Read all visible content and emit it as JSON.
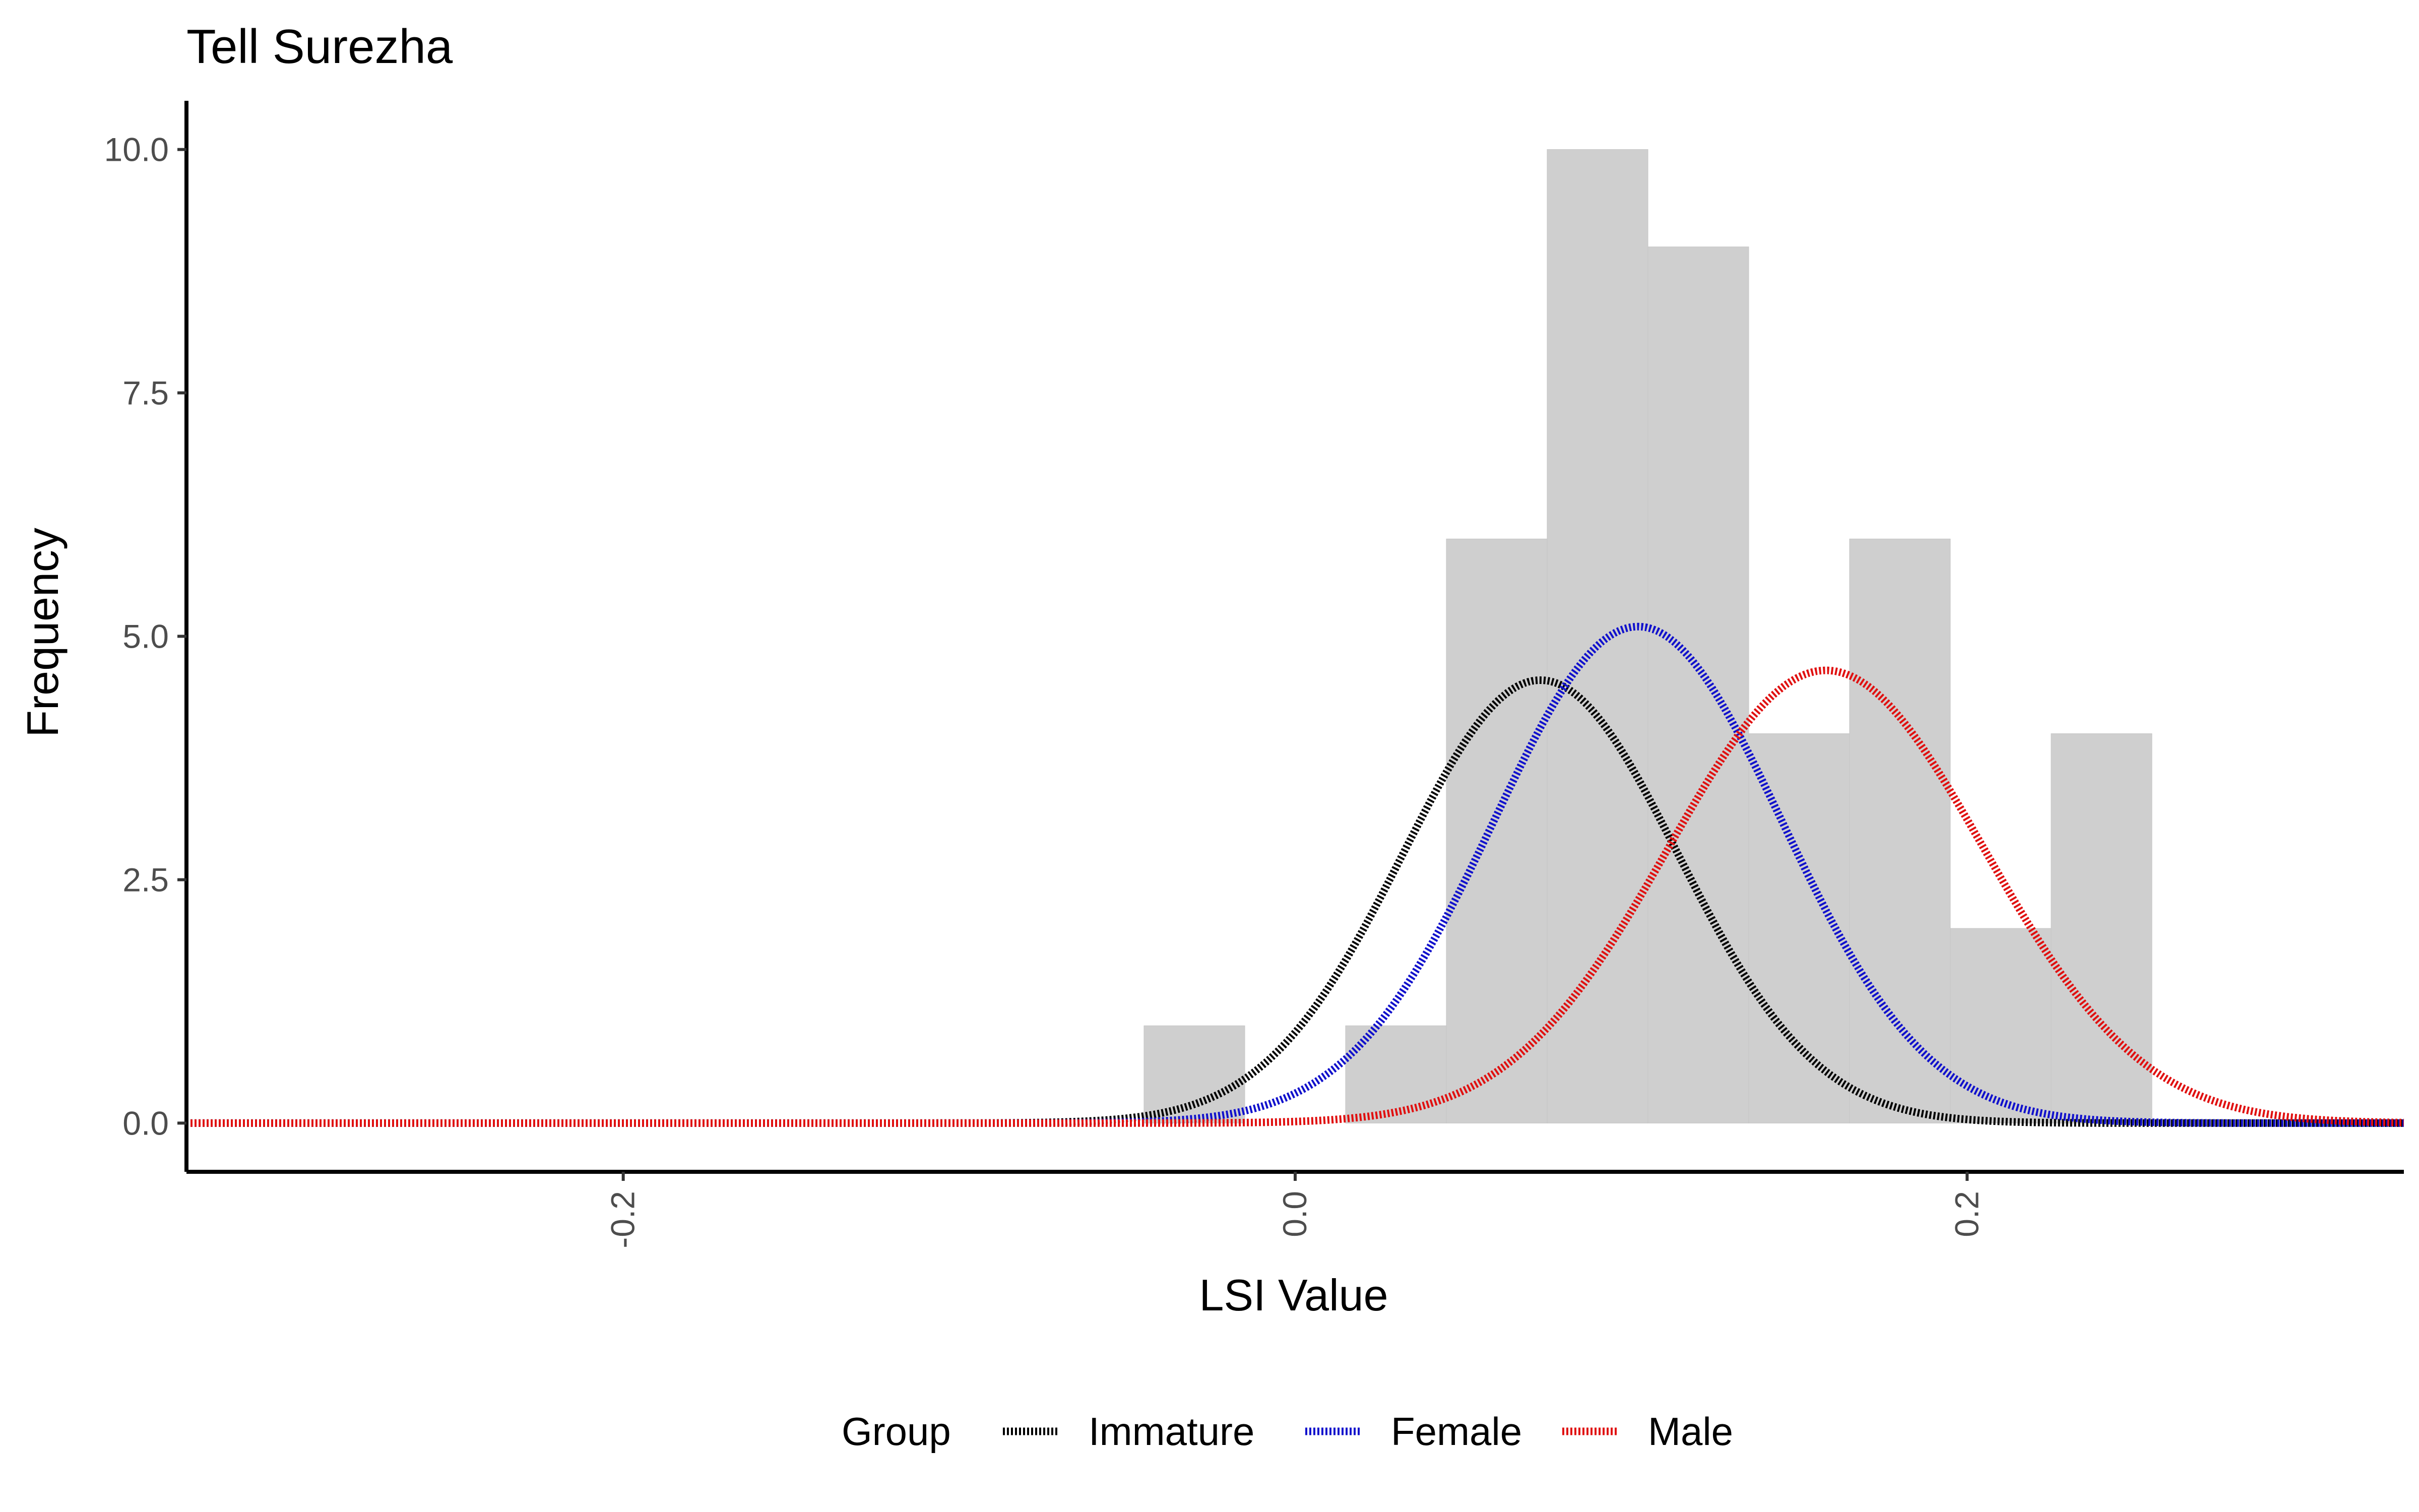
{
  "chart_data": {
    "type": "bar",
    "title": "Tell Surezha",
    "xlabel": "LSI Value",
    "ylabel": "Frequency",
    "xlim": [
      -0.33,
      0.33
    ],
    "ylim": [
      -0.5,
      10.5
    ],
    "x_ticks": [
      -0.2,
      0.0,
      0.2
    ],
    "x_tick_labels": [
      "-0.2",
      "0.0",
      "0.2"
    ],
    "y_ticks": [
      0,
      2.5,
      5,
      7.5,
      10
    ],
    "y_tick_labels": [
      "0.0",
      "2.5",
      "5.0",
      "7.5",
      "10.0"
    ],
    "grid": false,
    "legend_position": "bottom",
    "histogram": {
      "bin_width": 0.03,
      "bins": [
        {
          "x_start": -0.045,
          "x_end": -0.015,
          "count": 1
        },
        {
          "x_start": -0.015,
          "x_end": 0.015,
          "count": 0
        },
        {
          "x_start": 0.015,
          "x_end": 0.045,
          "count": 1
        },
        {
          "x_start": 0.045,
          "x_end": 0.075,
          "count": 6
        },
        {
          "x_start": 0.075,
          "x_end": 0.105,
          "count": 10
        },
        {
          "x_start": 0.105,
          "x_end": 0.135,
          "count": 9
        },
        {
          "x_start": 0.135,
          "x_end": 0.165,
          "count": 4
        },
        {
          "x_start": 0.165,
          "x_end": 0.195,
          "count": 6
        },
        {
          "x_start": 0.195,
          "x_end": 0.225,
          "count": 2
        },
        {
          "x_start": 0.225,
          "x_end": 0.255,
          "count": 4
        }
      ],
      "fill": "#cfcfcf"
    },
    "legend_title": "Group",
    "series": [
      {
        "name": "Immature",
        "color": "#000000",
        "mean": 0.073,
        "sd": 0.041,
        "peak": 4.55
      },
      {
        "name": "Female",
        "color": "#1010cc",
        "mean": 0.102,
        "sd": 0.043,
        "peak": 5.1
      },
      {
        "name": "Male",
        "color": "#e01010",
        "mean": 0.158,
        "sd": 0.047,
        "peak": 4.65
      }
    ]
  }
}
